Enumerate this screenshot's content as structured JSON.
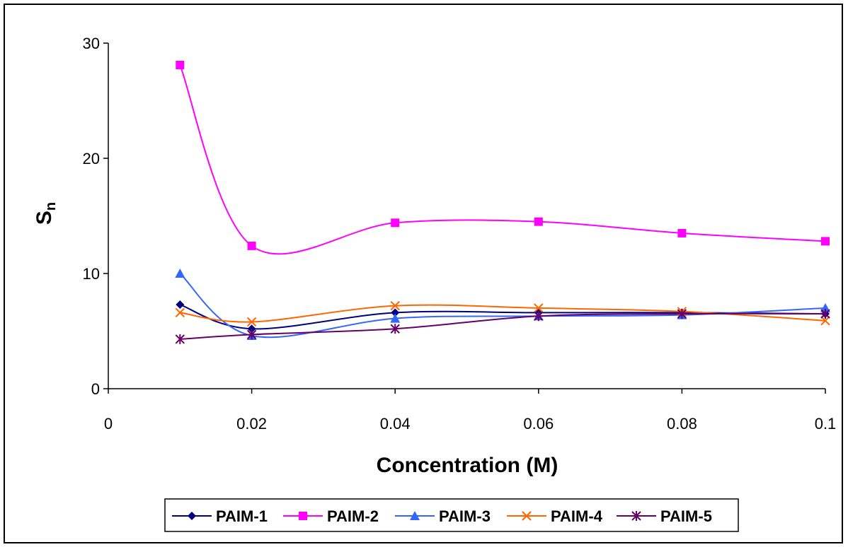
{
  "chart_data": {
    "type": "line",
    "xlabel": "Concentration (M)",
    "ylabel_main": "S",
    "ylabel_sub": "n",
    "xlim": [
      0,
      0.1
    ],
    "ylim": [
      0,
      30
    ],
    "xticks": [
      0,
      0.02,
      0.04,
      0.06,
      0.08,
      0.1
    ],
    "xtick_labels": [
      "0",
      "0.02",
      "0.04",
      "0.06",
      "0.08",
      "0.1"
    ],
    "yticks": [
      0,
      10,
      20,
      30
    ],
    "ytick_labels": [
      "0",
      "10",
      "20",
      "30"
    ],
    "grid": false,
    "legend_position": "bottom",
    "smooth": true,
    "x": [
      0.01,
      0.02,
      0.04,
      0.06,
      0.08,
      0.1
    ],
    "series": [
      {
        "name": "PAIM-1",
        "color": "#000080",
        "marker": "diamond",
        "values": [
          7.3,
          5.2,
          6.6,
          6.6,
          6.6,
          6.5
        ]
      },
      {
        "name": "PAIM-2",
        "color": "#ff00ff",
        "marker": "square",
        "values": [
          28.1,
          12.4,
          14.4,
          14.5,
          13.5,
          12.8
        ]
      },
      {
        "name": "PAIM-3",
        "color": "#3366ff",
        "marker": "triangle",
        "values": [
          10.0,
          4.6,
          6.1,
          6.3,
          6.4,
          7.0
        ]
      },
      {
        "name": "PAIM-4",
        "color": "#ff6600",
        "marker": "x",
        "values": [
          6.6,
          5.8,
          7.2,
          7.0,
          6.7,
          5.9
        ]
      },
      {
        "name": "PAIM-5",
        "color": "#660066",
        "marker": "star",
        "values": [
          4.3,
          4.7,
          5.2,
          6.3,
          6.5,
          6.5
        ]
      }
    ]
  }
}
